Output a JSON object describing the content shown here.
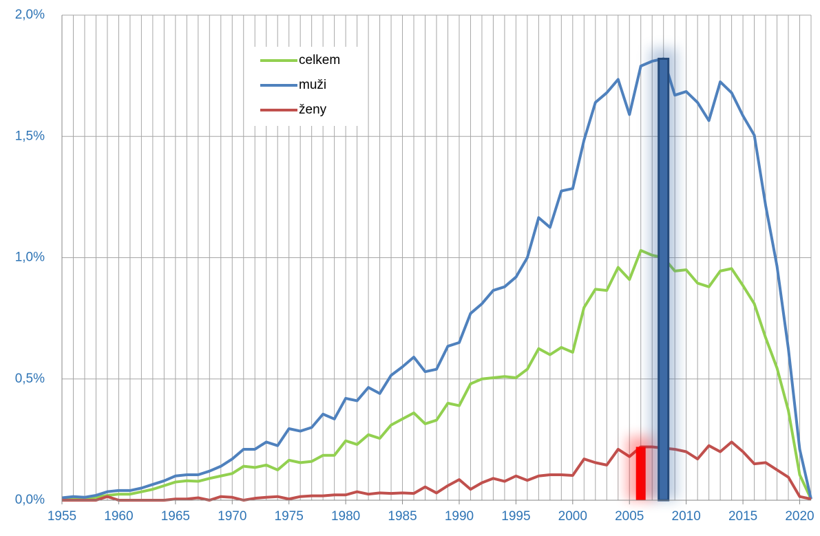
{
  "chart_data": {
    "type": "line",
    "x": [
      1955,
      1956,
      1957,
      1958,
      1959,
      1960,
      1961,
      1962,
      1963,
      1964,
      1965,
      1966,
      1967,
      1968,
      1969,
      1970,
      1971,
      1972,
      1973,
      1974,
      1975,
      1976,
      1977,
      1978,
      1979,
      1980,
      1981,
      1982,
      1983,
      1984,
      1985,
      1986,
      1987,
      1988,
      1989,
      1990,
      1991,
      1992,
      1993,
      1994,
      1995,
      1996,
      1997,
      1998,
      1999,
      2000,
      2001,
      2002,
      2003,
      2004,
      2005,
      2006,
      2007,
      2008,
      2009,
      2010,
      2011,
      2012,
      2013,
      2014,
      2015,
      2016,
      2017,
      2018,
      2019,
      2020,
      2021
    ],
    "series": [
      {
        "name": "celkem",
        "color": "#92d050",
        "values": [
          0.005,
          0.01,
          0.008,
          0.012,
          0.02,
          0.025,
          0.025,
          0.035,
          0.045,
          0.06,
          0.075,
          0.08,
          0.078,
          0.09,
          0.1,
          0.11,
          0.14,
          0.135,
          0.145,
          0.125,
          0.165,
          0.155,
          0.16,
          0.185,
          0.185,
          0.245,
          0.23,
          0.27,
          0.255,
          0.31,
          0.335,
          0.36,
          0.315,
          0.33,
          0.4,
          0.39,
          0.48,
          0.5,
          0.505,
          0.51,
          0.505,
          0.54,
          0.625,
          0.6,
          0.63,
          0.61,
          0.795,
          0.87,
          0.865,
          0.96,
          0.91,
          1.03,
          1.01,
          1.0,
          0.945,
          0.95,
          0.895,
          0.88,
          0.945,
          0.955,
          0.885,
          0.81,
          0.67,
          0.545,
          0.37,
          0.105,
          0.005
        ]
      },
      {
        "name": "muži",
        "color": "#4f81bd",
        "values": [
          0.01,
          0.015,
          0.012,
          0.02,
          0.035,
          0.04,
          0.04,
          0.05,
          0.065,
          0.08,
          0.1,
          0.105,
          0.105,
          0.12,
          0.14,
          0.17,
          0.21,
          0.21,
          0.24,
          0.225,
          0.295,
          0.285,
          0.3,
          0.355,
          0.335,
          0.42,
          0.41,
          0.465,
          0.44,
          0.515,
          0.55,
          0.59,
          0.53,
          0.54,
          0.635,
          0.65,
          0.77,
          0.81,
          0.865,
          0.88,
          0.92,
          1.0,
          1.165,
          1.125,
          1.275,
          1.285,
          1.485,
          1.64,
          1.68,
          1.735,
          1.59,
          1.79,
          1.81,
          1.82,
          1.67,
          1.685,
          1.64,
          1.565,
          1.725,
          1.68,
          1.585,
          1.505,
          1.215,
          0.965,
          0.625,
          0.21,
          0.005
        ]
      },
      {
        "name": "ženy",
        "color": "#c0504d",
        "values": [
          0,
          0,
          0,
          0,
          0.015,
          0,
          0,
          0,
          0,
          0,
          0.005,
          0.005,
          0.01,
          0,
          0.015,
          0.012,
          0,
          0.008,
          0.012,
          0.015,
          0.005,
          0.015,
          0.018,
          0.018,
          0.022,
          0.022,
          0.035,
          0.025,
          0.03,
          0.028,
          0.03,
          0.028,
          0.055,
          0.03,
          0.06,
          0.085,
          0.045,
          0.072,
          0.09,
          0.078,
          0.1,
          0.082,
          0.1,
          0.105,
          0.105,
          0.102,
          0.17,
          0.155,
          0.145,
          0.21,
          0.18,
          0.22,
          0.22,
          0.215,
          0.21,
          0.2,
          0.17,
          0.225,
          0.2,
          0.24,
          0.2,
          0.15,
          0.155,
          0.125,
          0.095,
          0.015,
          0.005
        ]
      }
    ],
    "highlights": [
      {
        "x": 2006,
        "value": 0.22,
        "color": "#ff0000"
      },
      {
        "x": 2008,
        "value": 1.82,
        "color": "#3d6aa5"
      }
    ],
    "xlim": [
      1955,
      2021
    ],
    "xticks": [
      1955,
      1960,
      1965,
      1970,
      1975,
      1980,
      1985,
      1990,
      1995,
      2000,
      2005,
      2010,
      2015,
      2020
    ],
    "ylim": [
      0,
      2
    ],
    "yticks": [
      {
        "value": 0,
        "label": "0,0%"
      },
      {
        "value": 0.5,
        "label": "0,5%"
      },
      {
        "value": 1,
        "label": "1,0%"
      },
      {
        "value": 1.5,
        "label": "1,5%"
      },
      {
        "value": 2,
        "label": "2,0%"
      }
    ],
    "grid": true
  }
}
